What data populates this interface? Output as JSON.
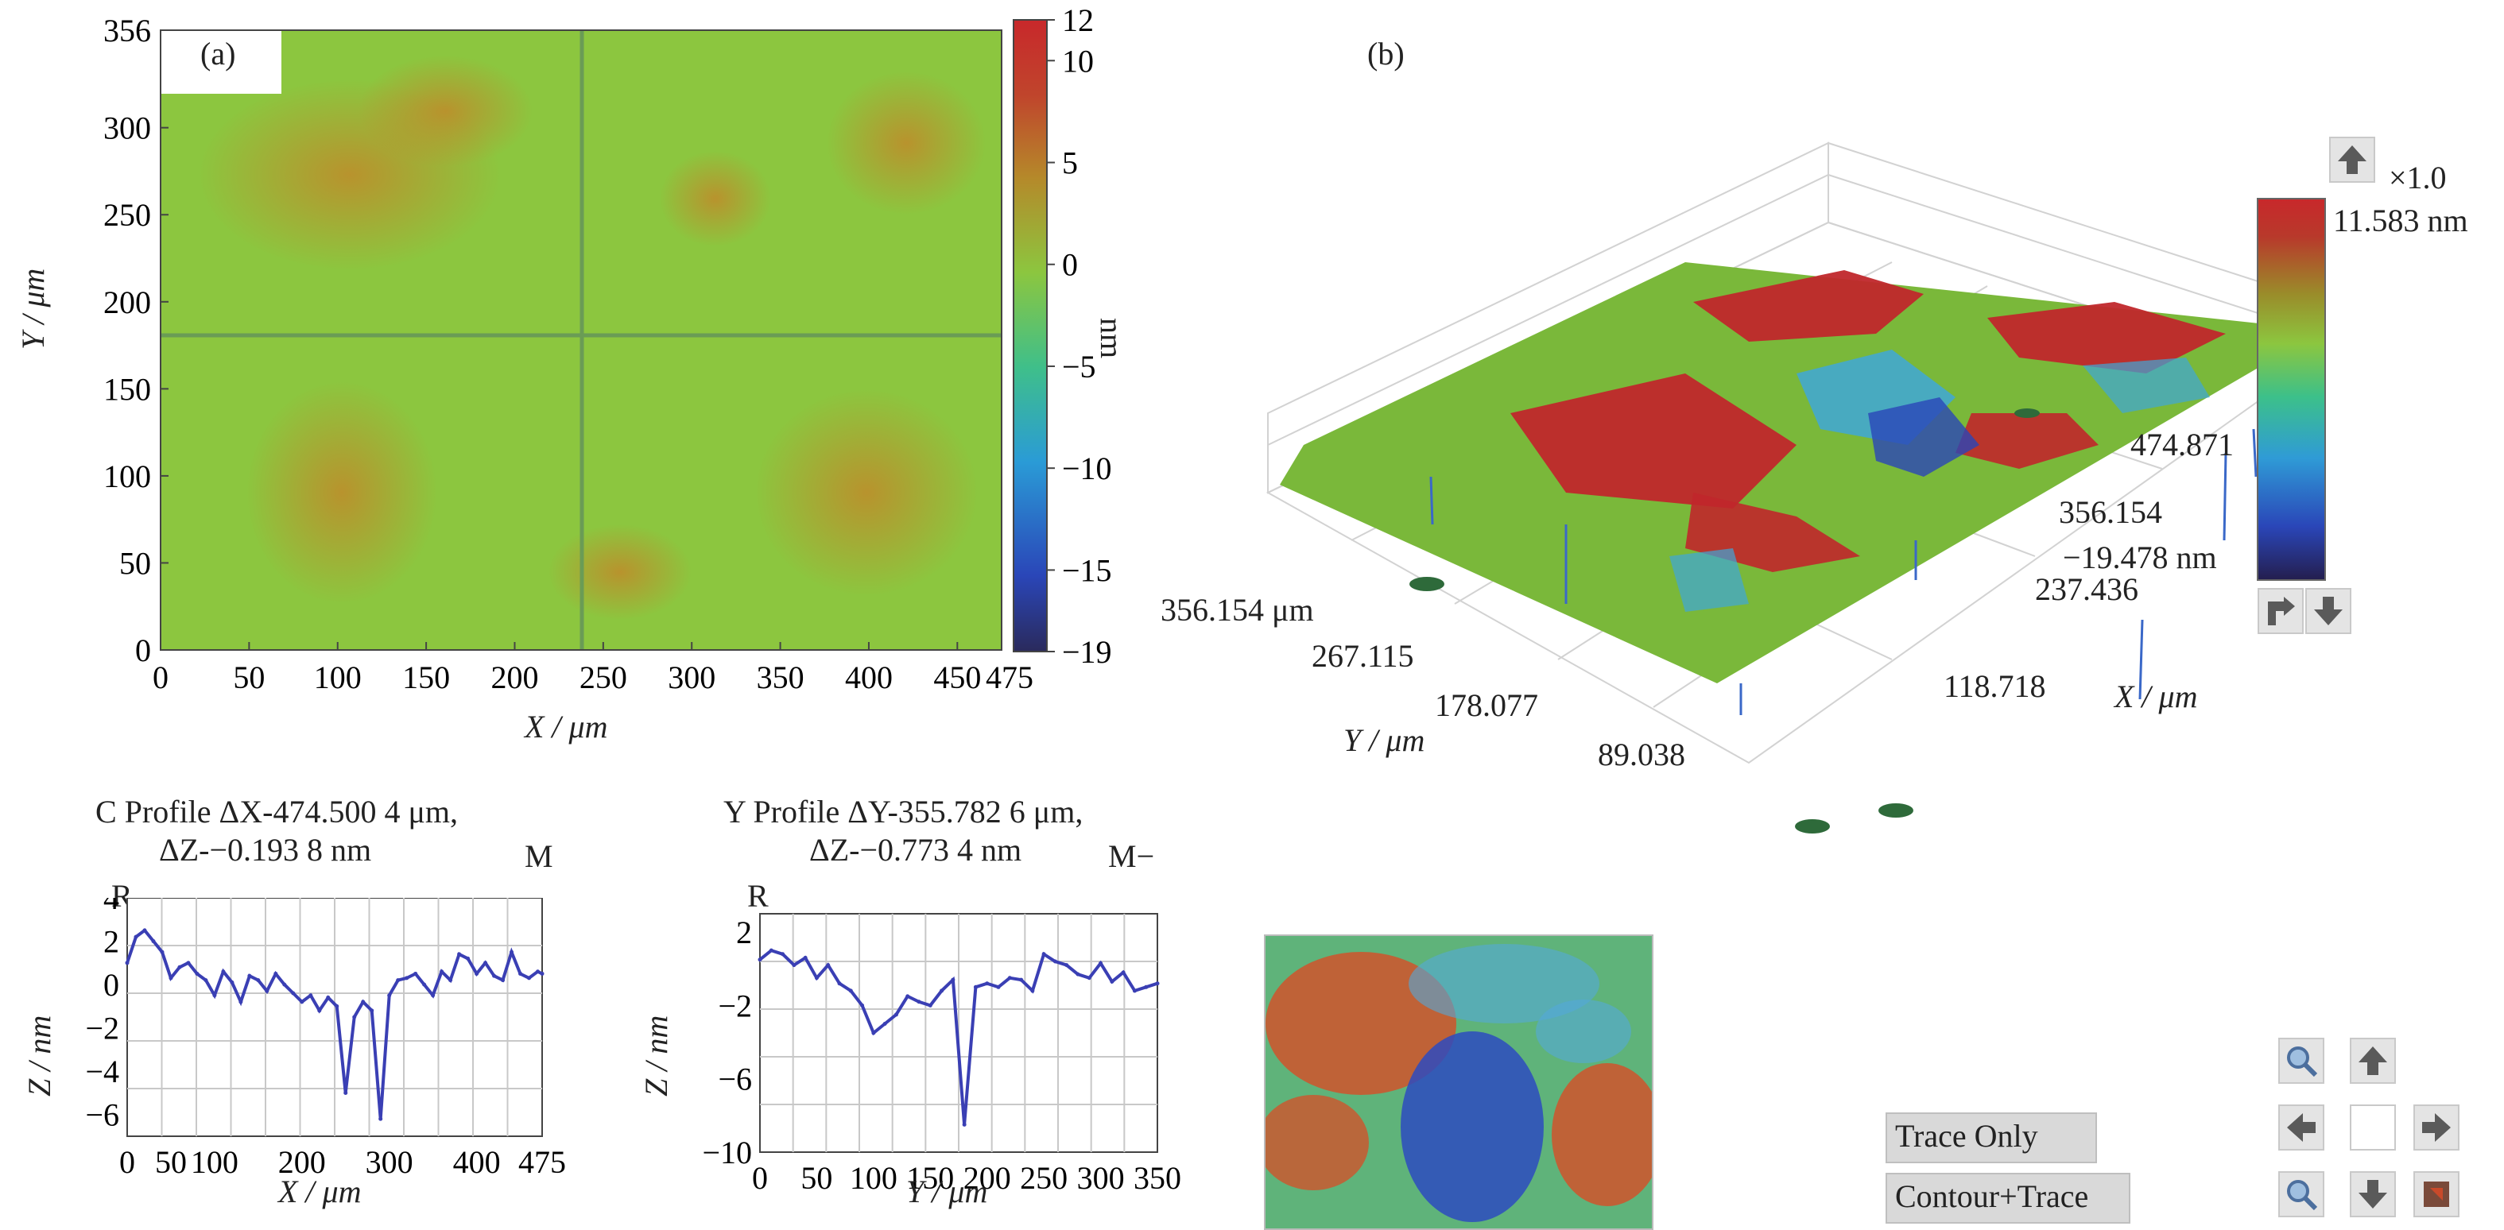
{
  "map_a": {
    "panel_label": "(a)",
    "xlabel": "X / μm",
    "ylabel": "Y / μm",
    "x_ticks": [
      "0",
      "50",
      "100",
      "150",
      "200",
      "250",
      "300",
      "350",
      "400",
      "450",
      "475"
    ],
    "y_ticks": [
      "0",
      "50",
      "100",
      "150",
      "200",
      "250",
      "300",
      "356"
    ],
    "colorbar_ticks": [
      "12",
      "10",
      "5",
      "0",
      "−5",
      "−10",
      "−15",
      "−19"
    ],
    "colorbar_unit": "nm"
  },
  "view_b": {
    "panel_label": "(b)",
    "zoom_label": "×1.0",
    "colorbar_max": "11.583 nm",
    "z_min": "−19.478 nm",
    "x_axis_ticks": [
      "118.718",
      "237.436",
      "356.154",
      "474.871"
    ],
    "y_axis_ticks": [
      "89.038",
      "178.077",
      "267.115",
      "356.154 μm"
    ],
    "xlabel": "X / μm",
    "ylabel": "Y / μm"
  },
  "profile_x": {
    "title_line1": "C Profile ΔX-474.500 4 μm,",
    "title_line2": "ΔZ-−0.193 8 nm",
    "corner_left": "R",
    "corner_right": "M",
    "xlabel": "X / μm",
    "ylabel": "Z / nm",
    "x_ticks": [
      "0",
      "50",
      "100",
      "200",
      "300",
      "400",
      "475"
    ],
    "y_ticks": [
      "4",
      "2",
      "0",
      "−2",
      "−4",
      "−6"
    ]
  },
  "profile_y": {
    "title_line1": "Y Profile ΔY-355.782 6 μm,",
    "title_line2": "ΔZ-−0.773 4 nm",
    "corner_left": "R",
    "corner_right": "M−",
    "xlabel": "Y / μm",
    "ylabel": "Z / nm",
    "x_ticks": [
      "0",
      "50",
      "100",
      "150",
      "200",
      "250",
      "300",
      "350"
    ],
    "y_ticks": [
      "2",
      "−2",
      "−6",
      "−10"
    ]
  },
  "controls": {
    "trace_only": "Trace Only",
    "contour_trace": "Contour+Trace"
  },
  "icons": {
    "up": "arrow-up-icon",
    "down": "arrow-down-icon",
    "left": "arrow-left-icon",
    "right": "arrow-right-icon",
    "zoom_in": "zoom-in-icon",
    "zoom_out": "zoom-out-icon",
    "rotate": "rotate-icon"
  },
  "colors": {
    "surface_green": "#8cc63f",
    "surface_red": "#c8282b",
    "surface_blue": "#2a4bbf",
    "profile_line": "#3a3fb4"
  },
  "chart_data": [
    {
      "type": "line",
      "xlabel": "X / μm",
      "ylabel": "Z / nm",
      "xlim": [
        0,
        475
      ],
      "ylim": [
        -7,
        4
      ],
      "grid": true,
      "series": [
        {
          "x": [
            0,
            10,
            20,
            30,
            40,
            50,
            60,
            70,
            80,
            90,
            100,
            110,
            120,
            130,
            140,
            150,
            160,
            170,
            180,
            190,
            200,
            210,
            220,
            230,
            240,
            250,
            260,
            270,
            280,
            290,
            300,
            310,
            320,
            330,
            340,
            350,
            360,
            370,
            380,
            390,
            400,
            410,
            420,
            430,
            440,
            450,
            460,
            470,
            475
          ],
          "values": [
            1,
            2.2,
            2.5,
            2,
            1.5,
            0.3,
            0.8,
            1,
            0.5,
            0.2,
            -0.5,
            0.6,
            0.1,
            -0.8,
            0.4,
            0.2,
            -0.3,
            0.5,
            0,
            -0.4,
            -0.8,
            -0.5,
            -1.2,
            -0.6,
            -1,
            -5,
            -1.5,
            -0.8,
            -1.2,
            -6.2,
            -0.5,
            0.2,
            0.3,
            0.5,
            0,
            -0.5,
            0.6,
            0.2,
            1.4,
            1.2,
            0.5,
            1,
            0.4,
            0.2,
            1.5,
            0.5,
            0.3,
            0.6,
            0.5
          ]
        }
      ]
    },
    {
      "type": "line",
      "xlabel": "Y / μm",
      "ylabel": "Z / nm",
      "xlim": [
        0,
        350
      ],
      "ylim": [
        -10,
        3
      ],
      "grid": true,
      "series": [
        {
          "x": [
            0,
            10,
            20,
            30,
            40,
            50,
            60,
            70,
            80,
            90,
            100,
            110,
            120,
            130,
            140,
            150,
            160,
            170,
            180,
            190,
            200,
            210,
            220,
            230,
            240,
            250,
            260,
            270,
            280,
            290,
            300,
            310,
            320,
            330,
            340,
            350
          ],
          "values": [
            0.5,
            1,
            0.8,
            0.2,
            0.6,
            -0.5,
            0.2,
            -0.8,
            -1.2,
            -2,
            -3.5,
            -3,
            -2.5,
            -1.5,
            -1.8,
            -2,
            -1.2,
            -0.6,
            -8.5,
            -1,
            -0.8,
            -1,
            -0.5,
            -0.6,
            -1.2,
            0.8,
            0.4,
            0.2,
            -0.3,
            -0.5,
            0.3,
            -0.7,
            -0.2,
            -1.2,
            -1,
            -0.8
          ]
        }
      ]
    }
  ]
}
